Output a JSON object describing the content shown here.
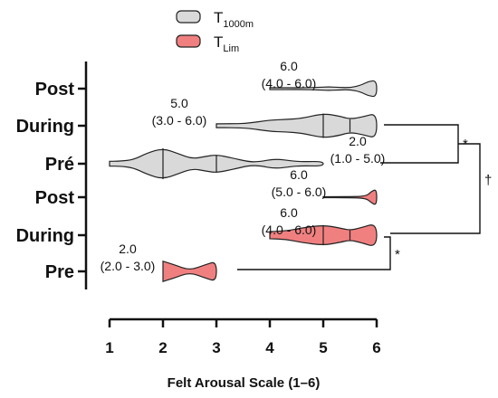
{
  "chart_data": {
    "type": "violin",
    "xlabel": "Felt Arousal Scale  (1–6)",
    "xlim": [
      1,
      6
    ],
    "xticks": [
      "1",
      "2",
      "3",
      "4",
      "5",
      "6"
    ],
    "legend": {
      "position": "top",
      "entries": [
        {
          "name": "T",
          "sub": "1000m",
          "color": "#d9d9d9",
          "series": "T1000m"
        },
        {
          "name": "T",
          "sub": "Lim",
          "color": "#f08080",
          "series": "TLim"
        }
      ]
    },
    "categories": [
      "Post",
      "During",
      "Pré",
      "Post",
      "During",
      "Pre"
    ],
    "series": [
      {
        "name": "T1000m",
        "color": "#d9d9d9",
        "groups": [
          {
            "label": "Post",
            "median": 6.0,
            "q1": 4.0,
            "q3": 6.0,
            "min": 4.0,
            "max": 6.0,
            "annotation": [
              "6.0",
              "(4.0 - 6.0)"
            ],
            "density": [
              [
                4.0,
                0.06
              ],
              [
                4.3,
                0.06
              ],
              [
                4.6,
                0.05
              ],
              [
                4.9,
                0.08
              ],
              [
                5.1,
                0.11
              ],
              [
                5.3,
                0.08
              ],
              [
                5.5,
                0.06
              ],
              [
                5.7,
                0.2
              ],
              [
                5.85,
                0.45
              ],
              [
                6.0,
                0.5
              ]
            ],
            "quartiles": []
          },
          {
            "label": "During",
            "median": 5.0,
            "q1": 3.0,
            "q3": 6.0,
            "min": 3.0,
            "max": 6.0,
            "annotation": [
              "5.0",
              "(3.0 - 6.0)"
            ],
            "density": [
              [
                3.0,
                0.12
              ],
              [
                3.3,
                0.12
              ],
              [
                3.6,
                0.15
              ],
              [
                4.0,
                0.35
              ],
              [
                4.3,
                0.38
              ],
              [
                4.6,
                0.45
              ],
              [
                5.0,
                0.75
              ],
              [
                5.3,
                0.6
              ],
              [
                5.5,
                0.4
              ],
              [
                5.75,
                0.55
              ],
              [
                6.0,
                0.78
              ]
            ],
            "quartiles": [
              5.0,
              5.5
            ]
          },
          {
            "label": "Pré",
            "median": 2.0,
            "q1": 1.0,
            "q3": 5.0,
            "min": 1.0,
            "max": 5.0,
            "annotation": [
              "2.0",
              "(1.0 - 5.0)"
            ],
            "density": [
              [
                1.0,
                0.15
              ],
              [
                1.2,
                0.15
              ],
              [
                1.45,
                0.25
              ],
              [
                1.7,
                0.65
              ],
              [
                2.0,
                0.95
              ],
              [
                2.3,
                0.6
              ],
              [
                2.55,
                0.3
              ],
              [
                2.8,
                0.45
              ],
              [
                3.0,
                0.55
              ],
              [
                3.3,
                0.35
              ],
              [
                3.6,
                0.12
              ],
              [
                3.8,
                0.12
              ],
              [
                4.1,
                0.3
              ],
              [
                4.4,
                0.18
              ],
              [
                4.6,
                0.12
              ],
              [
                5.0,
                0.15
              ]
            ],
            "quartiles": [
              2.0,
              3.0
            ]
          }
        ]
      },
      {
        "name": "TLim",
        "color": "#f08080",
        "groups": [
          {
            "label": "Post",
            "median": 6.0,
            "q1": 5.0,
            "q3": 6.0,
            "min": 5.0,
            "max": 6.0,
            "annotation": [
              "6.0",
              "(5.0 - 6.0)"
            ],
            "density": [
              [
                5.0,
                0.03
              ],
              [
                5.4,
                0.03
              ],
              [
                5.8,
                0.05
              ],
              [
                5.9,
                0.35
              ],
              [
                6.0,
                0.5
              ]
            ],
            "quartiles": []
          },
          {
            "label": "During",
            "median": 6.0,
            "q1": 4.0,
            "q3": 6.0,
            "min": 4.0,
            "max": 6.0,
            "annotation": [
              "6.0",
              "(4.0 - 6.0)"
            ],
            "density": [
              [
                4.0,
                0.22
              ],
              [
                4.3,
                0.25
              ],
              [
                4.6,
                0.45
              ],
              [
                5.0,
                0.62
              ],
              [
                5.3,
                0.45
              ],
              [
                5.5,
                0.3
              ],
              [
                5.7,
                0.45
              ],
              [
                6.0,
                0.75
              ]
            ],
            "quartiles": [
              5.0,
              5.5
            ]
          },
          {
            "label": "Pre",
            "median": 2.0,
            "q1": 2.0,
            "q3": 3.0,
            "min": 2.0,
            "max": 3.0,
            "annotation": [
              "2.0",
              "(2.0 - 3.0)"
            ],
            "density": [
              [
                2.0,
                0.62
              ],
              [
                2.2,
                0.42
              ],
              [
                2.5,
                0.06
              ],
              [
                2.8,
                0.42
              ],
              [
                3.0,
                0.62
              ]
            ],
            "quartiles": []
          }
        ]
      }
    ],
    "significance": [
      {
        "between": [
          "During (T1000m)",
          "Pré (T1000m)"
        ],
        "symbol": "*"
      },
      {
        "between": [
          "During (TLim)",
          "Pre (TLim)"
        ],
        "symbol": "*"
      },
      {
        "between": [
          "T1000m",
          "TLim"
        ],
        "symbol": "†"
      }
    ]
  }
}
